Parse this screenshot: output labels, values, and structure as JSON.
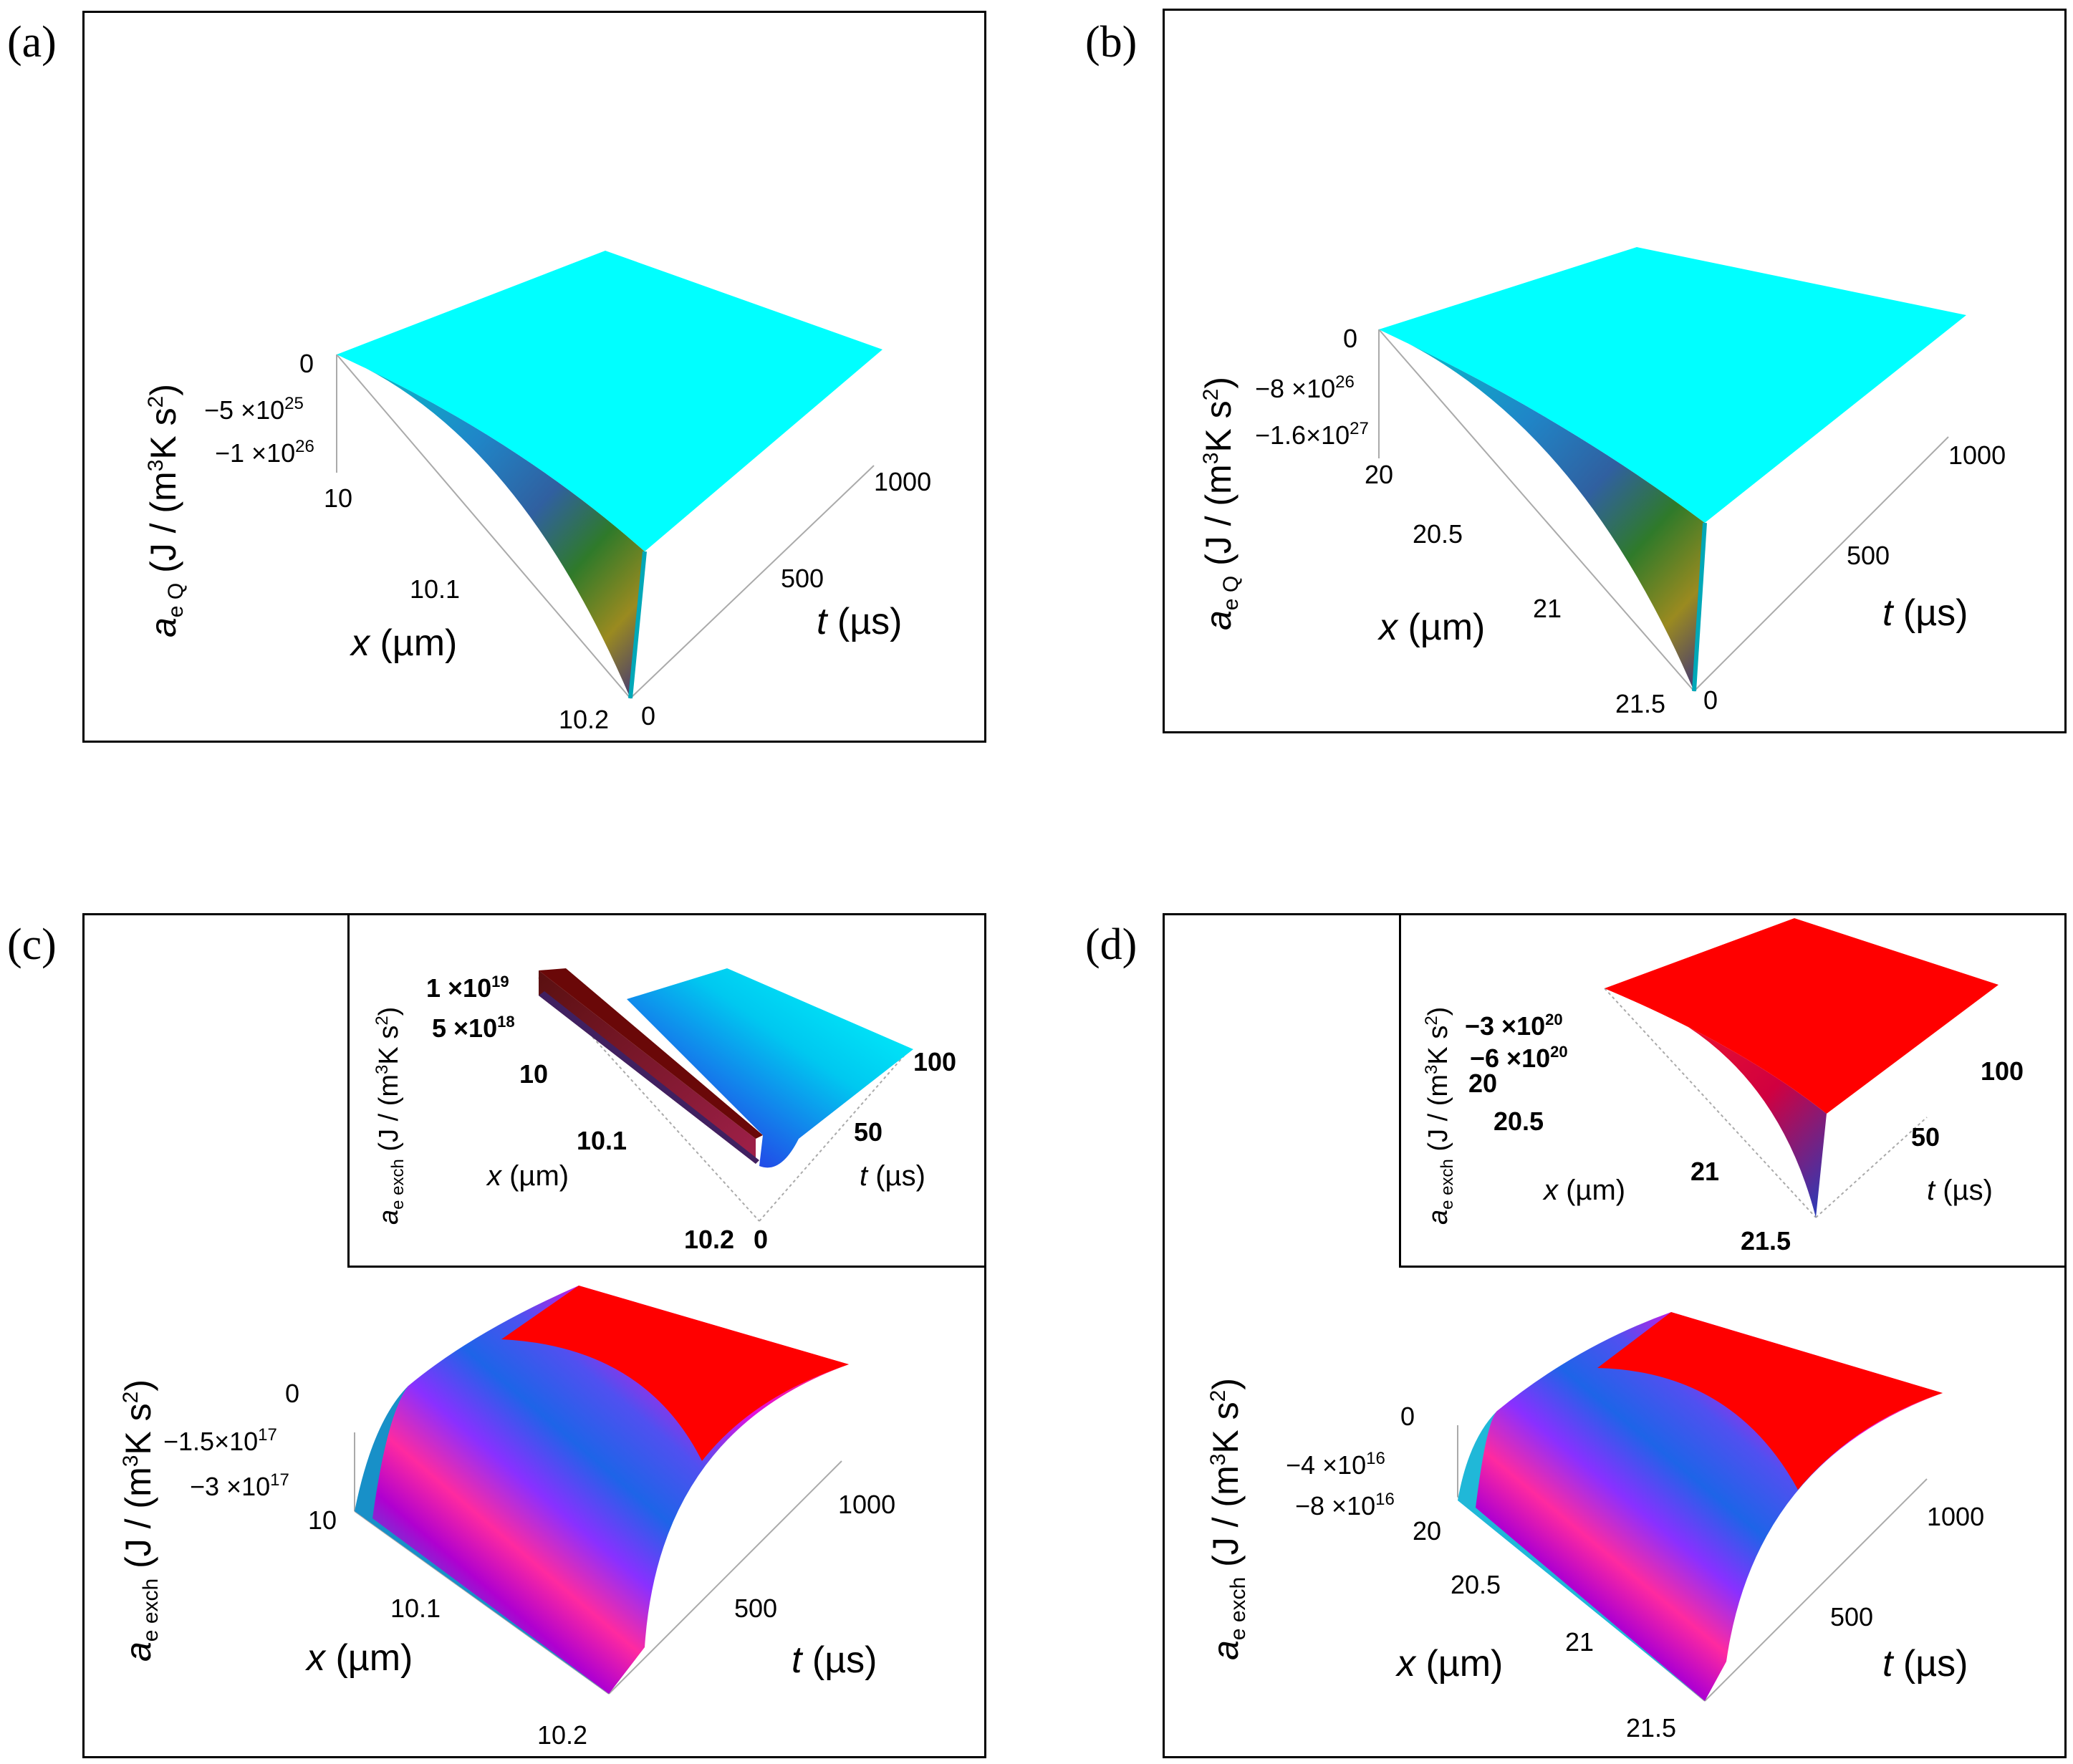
{
  "figure": {
    "panels": [
      {
        "id": "a",
        "label": "(a)"
      },
      {
        "id": "b",
        "label": "(b)"
      },
      {
        "id": "c",
        "label": "(c)"
      },
      {
        "id": "d",
        "label": "(d)"
      }
    ]
  },
  "chart_data": [
    {
      "panel": "(a)",
      "type": "surface3d",
      "zlabel": {
        "sym": "a",
        "sub": "e Q",
        "unit": " (J / (m",
        "sup1": "3",
        "mid": "K s",
        "sup2": "2",
        "end": ")"
      },
      "xlabel": {
        "sym": "x",
        "rest": " (µm)"
      },
      "tlabel": {
        "sym": "t",
        "rest": " (µs)"
      },
      "x_ticks": [
        "10",
        "10.1",
        "10.2"
      ],
      "t_ticks": [
        "0",
        "500",
        "1000"
      ],
      "z_ticks": [
        {
          "value": 0,
          "text": "0"
        },
        {
          "value": -5e+25,
          "mant": "−5 ×10",
          "exp": "25"
        },
        {
          "value": -1e+26,
          "mant": "−1 ×10",
          "exp": "26"
        }
      ],
      "x_range": [
        10,
        10.2
      ],
      "t_range": [
        0,
        1000
      ],
      "z_range": [
        -1.3e+26,
        0
      ],
      "description_values": {
        "plateau_z": 0,
        "min_z_at_t0_x_max": -1.3e+26
      },
      "colormap": "cyan plateau, blue/green/orange at deep end"
    },
    {
      "panel": "(b)",
      "type": "surface3d",
      "zlabel": {
        "sym": "a",
        "sub": "e Q",
        "unit": " (J / (m",
        "sup1": "3",
        "mid": "K s",
        "sup2": "2",
        "end": ")"
      },
      "xlabel": {
        "sym": "x",
        "rest": " (µm)"
      },
      "tlabel": {
        "sym": "t",
        "rest": " (µs)"
      },
      "x_ticks": [
        "20",
        "20.5",
        "21",
        "21.5"
      ],
      "t_ticks": [
        "0",
        "500",
        "1000"
      ],
      "z_ticks": [
        {
          "value": 0,
          "text": "0"
        },
        {
          "value": -8e+26,
          "mant": "−8 ×10",
          "exp": "26"
        },
        {
          "value": -1.6e+27,
          "mant": "−1.6×10",
          "exp": "27"
        }
      ],
      "x_range": [
        20,
        21.5
      ],
      "t_range": [
        0,
        1000
      ],
      "z_range": [
        -2.2e+27,
        0
      ],
      "colormap": "cyan plateau, blue/green/orange at deep end"
    },
    {
      "panel": "(c)",
      "type": "surface3d",
      "zlabel": {
        "sym": "a",
        "sub": "e exch",
        "unit": " (J / (m",
        "sup1": "3",
        "mid": "K s",
        "sup2": "2",
        "end": ")"
      },
      "xlabel": {
        "sym": "x",
        "rest": " (µm)"
      },
      "tlabel": {
        "sym": "t",
        "rest": " (µs)"
      },
      "x_ticks": [
        "10",
        "10.1",
        "10.2"
      ],
      "t_ticks": [
        "500",
        "1000"
      ],
      "z_ticks": [
        {
          "value": 0,
          "text": "0"
        },
        {
          "value": -1.5e+17,
          "mant": "−1.5×10",
          "exp": "17"
        },
        {
          "value": -3e+17,
          "mant": "−3 ×10",
          "exp": "17"
        }
      ],
      "x_range": [
        10,
        10.2
      ],
      "t_range": [
        0,
        1000
      ],
      "z_range": [
        -3.3e+17,
        0
      ],
      "colormap": "cyan/blue/magenta bands rising to red plateau",
      "inset": {
        "zlabel": {
          "sym": "a",
          "sub": "e exch",
          "unit": " (J / (m",
          "sup1": "3",
          "mid": "K s",
          "sup2": "2",
          "end": ")"
        },
        "xlabel": {
          "sym": "x",
          "rest": " (µm)"
        },
        "tlabel": {
          "sym": "t",
          "rest": " (µs)"
        },
        "x_ticks": [
          "10",
          "10.1",
          "10.2"
        ],
        "t_ticks": [
          "0",
          "50",
          "100"
        ],
        "z_ticks": [
          {
            "value": 1e+19,
            "mant": "1 ×10",
            "exp": "19"
          },
          {
            "value": 5e+18,
            "mant": "5 ×10",
            "exp": "18"
          }
        ],
        "t_range": [
          0,
          100
        ]
      }
    },
    {
      "panel": "(d)",
      "type": "surface3d",
      "zlabel": {
        "sym": "a",
        "sub": "e exch",
        "unit": " (J / (m",
        "sup1": "3",
        "mid": "K s",
        "sup2": "2",
        "end": ")"
      },
      "xlabel": {
        "sym": "x",
        "rest": " (µm)"
      },
      "tlabel": {
        "sym": "t",
        "rest": " (µs)"
      },
      "x_ticks": [
        "20",
        "20.5",
        "21",
        "21.5"
      ],
      "t_ticks": [
        "500",
        "1000"
      ],
      "z_ticks": [
        {
          "value": 0,
          "text": "0"
        },
        {
          "value": -4e+16,
          "mant": "−4 ×10",
          "exp": "16"
        },
        {
          "value": -8e+16,
          "mant": "−8 ×10",
          "exp": "16"
        }
      ],
      "x_range": [
        20,
        21.5
      ],
      "t_range": [
        0,
        1000
      ],
      "z_range": [
        -9e+16,
        0
      ],
      "colormap": "cyan/blue/magenta bands rising to red plateau",
      "inset": {
        "zlabel": {
          "sym": "a",
          "sub": "e exch",
          "unit": " (J / (m",
          "sup1": "3",
          "mid": "K s",
          "sup2": "2",
          "end": ")"
        },
        "xlabel": {
          "sym": "x",
          "rest": " (µm)"
        },
        "tlabel": {
          "sym": "t",
          "rest": " (µs)"
        },
        "x_ticks": [
          "20",
          "20.5",
          "21",
          "21.5"
        ],
        "t_ticks": [
          "50",
          "100"
        ],
        "z_ticks": [
          {
            "value": -3e+20,
            "mant": "−3 ×10",
            "exp": "20"
          },
          {
            "value": -6e+20,
            "mant": "−6 ×10",
            "exp": "20"
          }
        ],
        "t_range": [
          0,
          100
        ]
      }
    }
  ],
  "colors": {
    "cyan": "#00ffff",
    "red": "#ff0000",
    "magenta": "#ff00ff",
    "blue": "#2060ff",
    "axis_gray": "#999999"
  }
}
